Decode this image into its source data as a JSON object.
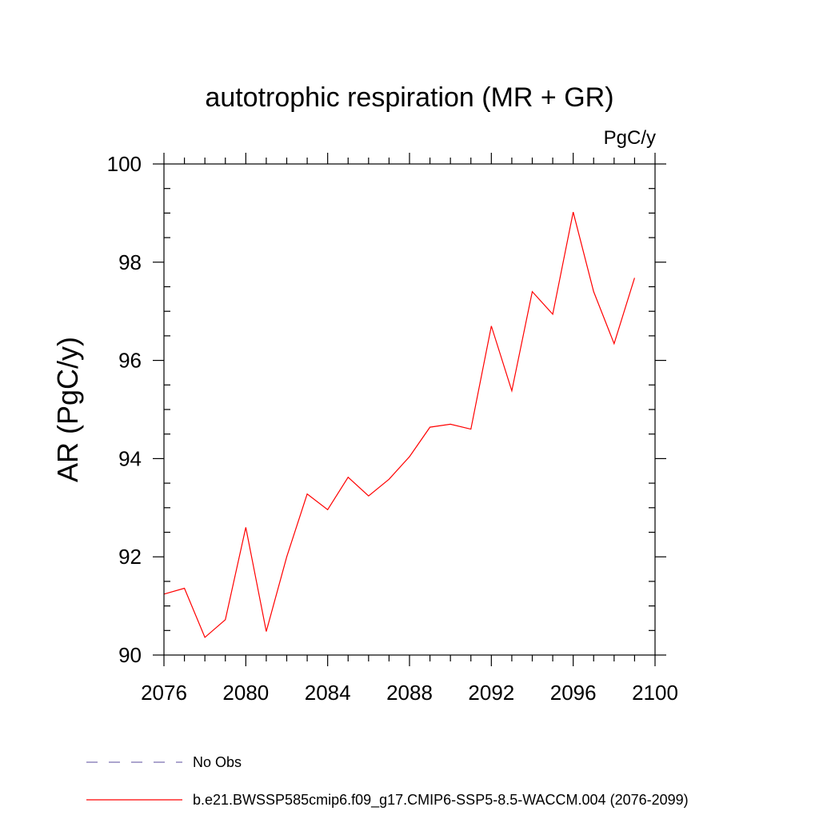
{
  "chart_data": {
    "type": "line",
    "title": "autotrophic respiration (MR + GR)",
    "units_label": "PgC/y",
    "ylabel": "AR  (PgC/y)",
    "xlabel": "",
    "xlim": [
      2076,
      2100
    ],
    "ylim": [
      90,
      100
    ],
    "xticks": [
      2076,
      2080,
      2084,
      2088,
      2092,
      2096,
      2100
    ],
    "xticks_minor_step": 1,
    "yticks": [
      90,
      92,
      94,
      96,
      98,
      100
    ],
    "yticks_minor_step": 0.5,
    "grid": false,
    "x": [
      2076,
      2077,
      2078,
      2079,
      2080,
      2081,
      2082,
      2083,
      2084,
      2085,
      2086,
      2087,
      2088,
      2089,
      2090,
      2091,
      2092,
      2093,
      2094,
      2095,
      2096,
      2097,
      2098,
      2099
    ],
    "series": [
      {
        "name": "b.e21.BWSSP585cmip6.f09_g17.CMIP6-SSP5-8.5-WACCM.004 (2076-2099)",
        "color": "#ff0000",
        "style": "solid",
        "values": [
          91.24,
          91.36,
          90.36,
          90.72,
          92.6,
          90.48,
          92.0,
          93.28,
          92.96,
          93.62,
          93.24,
          93.58,
          94.04,
          94.64,
          94.7,
          94.6,
          96.7,
          95.38,
          97.4,
          96.94,
          99.02,
          97.4,
          96.34,
          97.68
        ]
      }
    ],
    "legend": {
      "placement": "bottom-left",
      "entries": [
        {
          "label": "No Obs",
          "color": "#7b6fb0",
          "style": "dashed"
        },
        {
          "label": "b.e21.BWSSP585cmip6.f09_g17.CMIP6-SSP5-8.5-WACCM.004 (2076-2099)",
          "color": "#ff0000",
          "style": "solid"
        }
      ]
    }
  }
}
